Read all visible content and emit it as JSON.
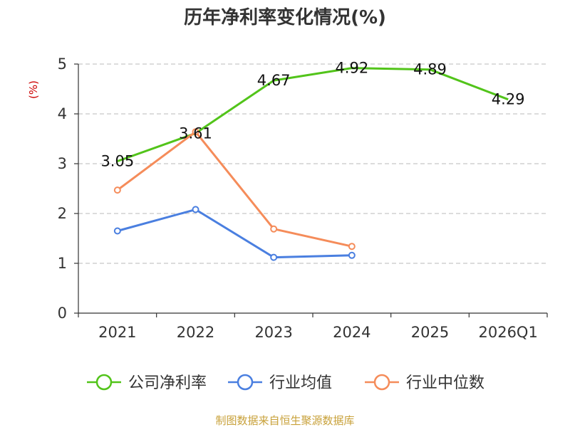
{
  "chart_data": {
    "type": "line",
    "title": "历年净利率变化情况(%)",
    "ylabel": "(%)",
    "xlabel": "",
    "categories": [
      "2021",
      "2022",
      "2023",
      "2024",
      "2025",
      "2026Q1"
    ],
    "ylim": [
      0,
      5
    ],
    "yticks": [
      0,
      1,
      2,
      3,
      4,
      5
    ],
    "grid": true,
    "legend_position": "bottom",
    "series": [
      {
        "name": "公司净利率",
        "color": "#52c41a",
        "values": [
          3.05,
          3.61,
          4.67,
          4.92,
          4.89,
          4.29
        ],
        "labels": [
          "3.05",
          "3.61",
          "4.67",
          "4.92",
          "4.89",
          "4.29"
        ],
        "markers": false
      },
      {
        "name": "行业均值",
        "color": "#4a7fe0",
        "values": [
          1.65,
          2.08,
          1.12,
          1.16,
          null,
          null
        ],
        "markers": true
      },
      {
        "name": "行业中位数",
        "color": "#f58c5a",
        "values": [
          2.47,
          3.64,
          1.69,
          1.34,
          null,
          null
        ],
        "markers": true
      }
    ]
  },
  "source": "制图数据来自恒生聚源数据库"
}
